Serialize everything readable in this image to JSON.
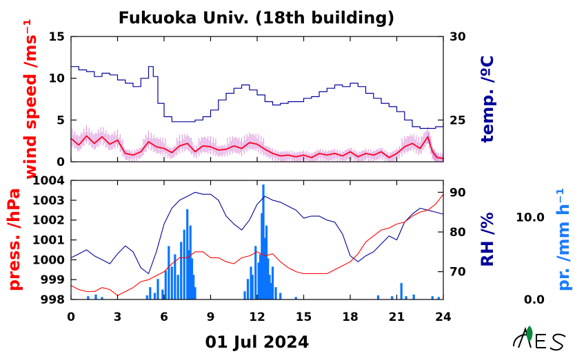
{
  "title": "Fukuoka Univ. (18th building)",
  "date_label": "01 Jul 2024",
  "colors": {
    "wind": "#ff0022",
    "wind_raw": "#d98fd9",
    "temp": "#00009a",
    "press": "#ff0000",
    "rh": "#00009a",
    "precip": "#0a74ff"
  },
  "chart_data": [
    {
      "type": "line",
      "name": "upper-panel",
      "xlim": [
        0,
        24
      ],
      "x_ticks": [
        "0",
        "3",
        "6",
        "9",
        "12",
        "15",
        "18",
        "21",
        "24"
      ],
      "left_axis": {
        "label": "wind speed /ms⁻¹",
        "ylim": [
          0,
          15
        ],
        "ticks": [
          "0",
          "5",
          "10",
          "15"
        ]
      },
      "right_axis": {
        "label": "temp. /ºC",
        "ylim": [
          22.5,
          30
        ],
        "ticks": [
          "25",
          "30"
        ]
      },
      "series": [
        {
          "axis": "left",
          "style": "smooth",
          "x": [
            0,
            0.5,
            1,
            1.5,
            2,
            2.5,
            3,
            3.5,
            4,
            4.5,
            5,
            5.5,
            6,
            6.5,
            7,
            7.5,
            8,
            8.5,
            9,
            9.5,
            10,
            10.5,
            11,
            11.5,
            12,
            12.5,
            13,
            13.5,
            14,
            14.5,
            15,
            15.5,
            16,
            16.5,
            17,
            17.5,
            18,
            18.5,
            19,
            19.5,
            20,
            20.5,
            21,
            21.5,
            22,
            22.5,
            23,
            23.3,
            23.6,
            24
          ],
          "values": [
            2.8,
            2.0,
            3.1,
            2.2,
            3.0,
            2.1,
            2.6,
            1.0,
            0.8,
            1.2,
            2.4,
            1.8,
            1.6,
            1.1,
            1.9,
            2.2,
            1.2,
            1.9,
            1.8,
            1.4,
            1.5,
            1.9,
            1.6,
            2.3,
            2.1,
            1.5,
            1.0,
            0.7,
            0.8,
            0.6,
            0.8,
            0.5,
            1.0,
            0.8,
            1.0,
            0.7,
            1.2,
            0.6,
            1.0,
            0.8,
            1.2,
            0.5,
            1.0,
            1.8,
            2.2,
            1.6,
            3.0,
            1.2,
            0.5,
            0.4
          ]
        },
        {
          "axis": "right",
          "style": "step",
          "x": [
            0,
            0.5,
            1,
            1.5,
            2,
            2.5,
            3,
            3.5,
            4,
            4.5,
            5,
            5.3,
            5.6,
            6,
            6.5,
            7,
            7.5,
            8,
            8.5,
            9,
            9.5,
            10,
            10.5,
            11,
            11.5,
            12,
            12.5,
            13,
            13.5,
            14,
            14.5,
            15,
            15.5,
            16,
            16.5,
            17,
            17.5,
            18,
            18.5,
            19,
            19.5,
            20,
            20.5,
            21,
            21.5,
            22,
            22.5,
            23,
            23.5,
            24
          ],
          "values": [
            28.2,
            28.0,
            27.9,
            27.6,
            27.8,
            27.7,
            27.4,
            27.2,
            27.0,
            27.5,
            28.2,
            27.6,
            26.0,
            25.2,
            24.9,
            24.9,
            24.9,
            25.0,
            25.2,
            25.6,
            26.2,
            26.6,
            26.9,
            27.1,
            26.8,
            26.5,
            26.1,
            25.9,
            26.0,
            26.1,
            26.1,
            26.3,
            26.4,
            26.7,
            26.9,
            27.1,
            27.0,
            27.2,
            27.0,
            26.6,
            26.3,
            26.0,
            25.8,
            25.5,
            25.0,
            24.6,
            24.5,
            24.5,
            24.6,
            24.8
          ]
        }
      ]
    },
    {
      "type": "line",
      "name": "lower-panel",
      "xlim": [
        0,
        24
      ],
      "x_ticks": [
        "0",
        "3",
        "6",
        "9",
        "12",
        "15",
        "18",
        "21",
        "24"
      ],
      "left_axis": {
        "label": "press. /hPa",
        "ylim": [
          998,
          1004
        ],
        "ticks": [
          "998",
          "999",
          "1000",
          "1001",
          "1002",
          "1003",
          "1004"
        ]
      },
      "right_axis": {
        "label": "RH /%",
        "ylim": [
          63,
          93
        ],
        "ticks": [
          "70",
          "80",
          "90"
        ]
      },
      "far_right_axis": {
        "label": "pr. /mm h⁻¹",
        "ylim": [
          0,
          14.5
        ],
        "ticks": [
          "0.0",
          "10.0"
        ]
      },
      "series": [
        {
          "axis": "left",
          "x": [
            0,
            0.5,
            1,
            1.5,
            2,
            2.5,
            3,
            3.5,
            4,
            4.5,
            5,
            5.5,
            6,
            6.5,
            7,
            7.5,
            8,
            8.5,
            9,
            9.5,
            10,
            10.5,
            11,
            11.5,
            12,
            12.5,
            13,
            13.5,
            14,
            14.5,
            15,
            15.5,
            16,
            16.5,
            17,
            17.5,
            18,
            18.5,
            19,
            19.5,
            20,
            20.5,
            21,
            21.5,
            22,
            22.5,
            23,
            23.5,
            24
          ],
          "values": [
            998.7,
            998.5,
            998.4,
            998.4,
            998.6,
            998.5,
            998.2,
            998.4,
            998.6,
            998.9,
            999.0,
            999.2,
            999.4,
            999.8,
            1000.1,
            1000.1,
            1000.4,
            1000.4,
            1000.1,
            1000.1,
            999.9,
            999.8,
            1000.1,
            1000.2,
            1000.4,
            1000.2,
            1000.3,
            999.9,
            999.6,
            999.4,
            999.3,
            999.3,
            999.3,
            999.3,
            999.5,
            999.7,
            999.9,
            1000.3,
            1000.9,
            1001.2,
            1001.5,
            1001.6,
            1001.8,
            1001.9,
            1002.2,
            1002.4,
            1002.5,
            1002.8,
            1003.3
          ]
        },
        {
          "axis": "right",
          "x": [
            0,
            0.5,
            1,
            1.5,
            2,
            2.5,
            3,
            3.5,
            4,
            4.5,
            5,
            5.5,
            6,
            6.5,
            7,
            7.5,
            8,
            8.5,
            9,
            9.5,
            10,
            10.5,
            11,
            11.5,
            12,
            12.5,
            13,
            13.5,
            14,
            14.5,
            15,
            15.5,
            16,
            16.5,
            17,
            17.5,
            18,
            18.5,
            19,
            19.5,
            20,
            20.5,
            21,
            21.5,
            22,
            22.5,
            23,
            23.5,
            24
          ],
          "values": [
            73.5,
            74.5,
            75.5,
            74.0,
            73.0,
            72.0,
            74.5,
            76.5,
            75.0,
            71.0,
            69.5,
            75.0,
            82.0,
            86.0,
            88.0,
            89.0,
            90.0,
            89.5,
            89.5,
            88.0,
            84.0,
            82.0,
            80.5,
            83.0,
            87.0,
            89.0,
            88.0,
            87.5,
            86.5,
            85.5,
            83.5,
            84.0,
            84.0,
            83.0,
            82.5,
            79.5,
            74.0,
            72.5,
            74.0,
            75.0,
            77.0,
            79.0,
            78.0,
            82.5,
            84.5,
            86.0,
            85.5,
            85.0,
            84.5
          ]
        },
        {
          "axis": "far_right",
          "style": "bars",
          "x": [
            1.1,
            1.6,
            2.0,
            4.9,
            5.1,
            5.4,
            5.6,
            5.9,
            6.1,
            6.3,
            6.5,
            6.7,
            6.9,
            7.1,
            7.3,
            7.5,
            7.6,
            7.7,
            7.8,
            7.9,
            8.0,
            11.2,
            11.4,
            11.6,
            11.7,
            11.9,
            12.1,
            12.2,
            12.3,
            12.4,
            12.5,
            12.6,
            12.7,
            12.8,
            12.9,
            13.0,
            13.2,
            13.5,
            14.5,
            19.8,
            20.7,
            21.3,
            21.6,
            22.1,
            23.3,
            23.7
          ],
          "values": [
            0.4,
            0.6,
            0.3,
            0.5,
            1.5,
            0.8,
            2.5,
            1.2,
            3.5,
            6.5,
            4.0,
            5.5,
            3.0,
            7.0,
            8.5,
            11.0,
            6.0,
            9.0,
            5.0,
            3.0,
            1.5,
            1.0,
            2.5,
            4.0,
            3.0,
            6.5,
            4.5,
            5.5,
            10.5,
            14.0,
            7.5,
            9.0,
            5.0,
            3.0,
            2.0,
            4.0,
            1.5,
            0.8,
            0.3,
            0.5,
            0.4,
            2.0,
            0.4,
            0.6,
            0.4,
            0.3
          ]
        }
      ]
    }
  ]
}
